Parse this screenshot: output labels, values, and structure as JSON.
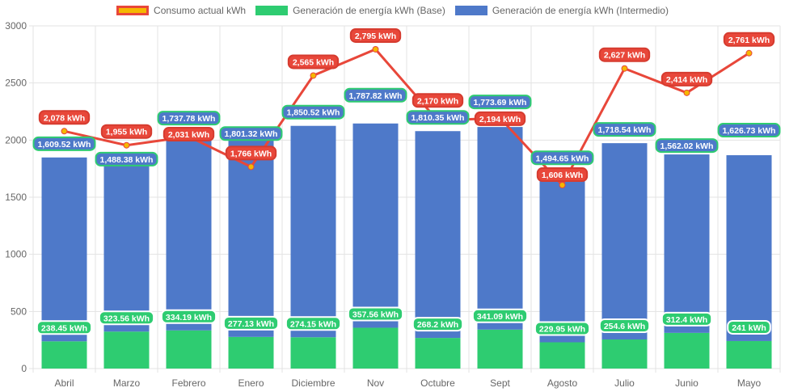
{
  "chart_data": {
    "type": "bar",
    "stacked": true,
    "categories": [
      "Abril",
      "Marzo",
      "Febrero",
      "Enero",
      "Diciembre",
      "Nov",
      "Octubre",
      "Sept",
      "Agosto",
      "Julio",
      "Junio",
      "Mayo"
    ],
    "ylim": [
      0,
      3000
    ],
    "yticks": [
      0,
      500,
      1000,
      1500,
      2000,
      2500,
      3000
    ],
    "grid": true,
    "legend_position": "top",
    "unit": "kWh",
    "series": [
      {
        "name": "Consumo actual kWh",
        "type": "line",
        "color": "#e8473a",
        "point_color": "#f5b800",
        "values": [
          2078,
          1955,
          2031,
          1766,
          2565,
          2795,
          2170,
          2194,
          1606,
          2627,
          2414,
          2761
        ]
      },
      {
        "name": "Generación de energía kWh (Base)",
        "type": "bar",
        "color": "#2ecc71",
        "values": [
          238.45,
          323.56,
          334.19,
          277.13,
          274.15,
          357.56,
          268.2,
          341.09,
          229.95,
          254.6,
          312.4,
          241
        ]
      },
      {
        "name": "Generación de energía kWh (Intermedio)",
        "type": "bar",
        "color": "#4e79c9",
        "values": [
          1609.52,
          1488.38,
          1737.78,
          1801.32,
          1850.52,
          1787.82,
          1810.35,
          1773.69,
          1494.65,
          1718.54,
          1562.02,
          1626.73
        ]
      }
    ]
  }
}
